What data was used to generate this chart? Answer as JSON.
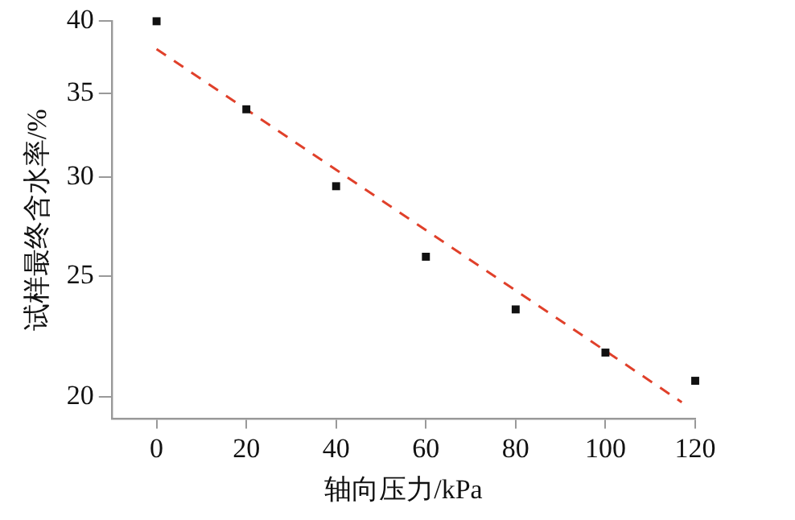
{
  "chart_data": {
    "type": "scatter",
    "xlabel": "轴向压力/kPa",
    "ylabel": "试样最终含水率/%",
    "x": [
      0,
      20,
      40,
      60,
      80,
      100,
      120
    ],
    "series": [
      {
        "color": "#111111",
        "marker": "square",
        "values": [
          40.0,
          34.0,
          29.5,
          25.9,
          23.5,
          21.7,
          20.6
        ]
      },
      {
        "type": "line",
        "color": "#e0402a",
        "line_style": "dashed",
        "marker": "none",
        "x": [
          0,
          117
        ],
        "values": [
          38.0,
          19.8
        ]
      }
    ],
    "xlim": [
      -10,
      120
    ],
    "xticks": [
      0,
      20,
      40,
      60,
      80,
      100,
      120
    ],
    "ylim": [
      19.2,
      40
    ],
    "yticks": [
      20,
      25,
      30,
      35,
      40
    ],
    "log": "y",
    "grid": false,
    "legend": false
  }
}
